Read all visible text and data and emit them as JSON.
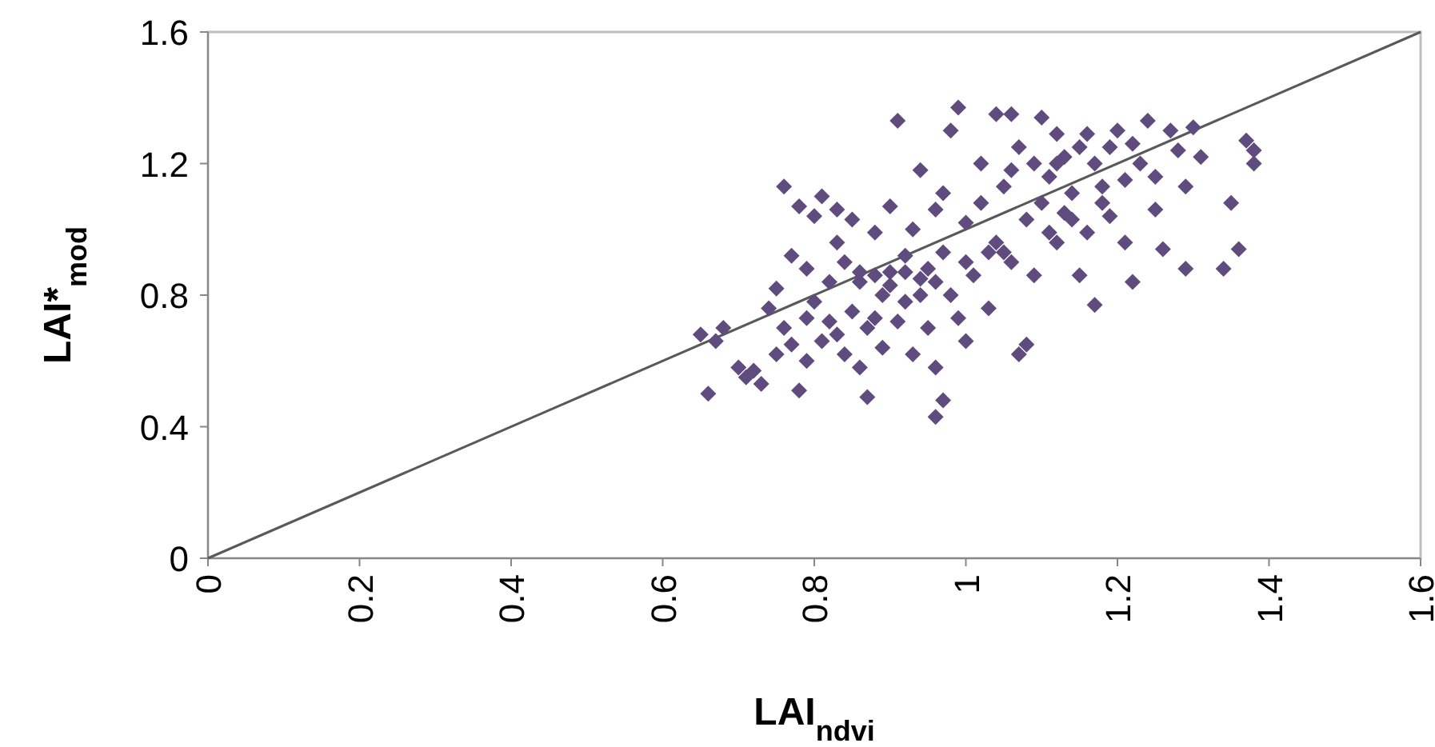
{
  "chart_data": {
    "type": "scatter",
    "xlabel": "LAI$_{ndvi}$",
    "ylabel": "LAI*$_{mod}$",
    "xlim": [
      0,
      1.6
    ],
    "ylim": [
      0,
      1.6
    ],
    "xticks": [
      0,
      0.2,
      0.4,
      0.6,
      0.8,
      1,
      1.2,
      1.4,
      1.6
    ],
    "yticks": [
      0,
      0.4,
      0.8,
      1.2,
      1.6
    ],
    "grid": false,
    "series": [
      {
        "color": "#5f4b7e",
        "marker": "diamond",
        "x": [
          0.65,
          0.67,
          0.66,
          0.68,
          0.7,
          0.71,
          0.72,
          0.73,
          0.74,
          0.75,
          0.75,
          0.76,
          0.76,
          0.77,
          0.77,
          0.78,
          0.78,
          0.79,
          0.79,
          0.8,
          0.8,
          0.81,
          0.81,
          0.82,
          0.82,
          0.83,
          0.83,
          0.84,
          0.84,
          0.85,
          0.85,
          0.86,
          0.86,
          0.87,
          0.87,
          0.88,
          0.88,
          0.89,
          0.89,
          0.9,
          0.9,
          0.91,
          0.91,
          0.92,
          0.92,
          0.93,
          0.93,
          0.94,
          0.94,
          0.95,
          0.95,
          0.96,
          0.96,
          0.96,
          0.97,
          0.97,
          0.97,
          0.98,
          0.98,
          0.99,
          0.99,
          1.0,
          1.0,
          1.01,
          1.02,
          1.02,
          1.03,
          1.04,
          1.04,
          1.05,
          1.05,
          1.06,
          1.06,
          1.07,
          1.07,
          1.08,
          1.08,
          1.09,
          1.09,
          1.1,
          1.1,
          1.11,
          1.11,
          1.12,
          1.12,
          1.13,
          1.13,
          1.14,
          1.15,
          1.15,
          1.16,
          1.16,
          1.17,
          1.17,
          1.18,
          1.19,
          1.19,
          1.2,
          1.21,
          1.21,
          1.22,
          1.22,
          1.23,
          1.24,
          1.25,
          1.25,
          1.26,
          1.27,
          1.28,
          1.29,
          1.29,
          1.3,
          1.31,
          1.34,
          1.35,
          1.36,
          1.37,
          1.38,
          1.38,
          0.9,
          0.92,
          0.94,
          0.96,
          0.86,
          1.0,
          1.03,
          0.79,
          0.83,
          0.88,
          1.12,
          1.14,
          1.06,
          1.18
        ],
        "values": [
          0.68,
          0.66,
          0.5,
          0.7,
          0.58,
          0.55,
          0.57,
          0.53,
          0.76,
          0.82,
          0.62,
          0.7,
          1.13,
          0.65,
          0.92,
          1.07,
          0.51,
          0.88,
          0.6,
          0.78,
          1.04,
          1.1,
          0.66,
          0.84,
          0.72,
          1.06,
          0.96,
          0.62,
          0.9,
          0.75,
          1.03,
          0.58,
          0.84,
          0.49,
          0.7,
          0.86,
          0.99,
          0.64,
          0.8,
          1.07,
          0.87,
          0.72,
          1.33,
          0.92,
          0.78,
          1.0,
          0.62,
          1.18,
          0.85,
          0.88,
          0.7,
          1.06,
          0.58,
          0.43,
          0.48,
          0.93,
          1.11,
          0.8,
          1.3,
          1.37,
          0.73,
          1.02,
          0.66,
          0.86,
          1.2,
          1.08,
          0.76,
          1.35,
          0.96,
          0.93,
          1.13,
          0.9,
          1.35,
          1.25,
          0.62,
          0.65,
          1.03,
          1.2,
          0.86,
          1.08,
          1.34,
          0.99,
          1.16,
          1.29,
          0.96,
          1.05,
          1.22,
          1.11,
          0.86,
          1.25,
          0.99,
          1.29,
          0.77,
          1.2,
          1.08,
          1.25,
          1.04,
          1.3,
          0.96,
          1.15,
          0.84,
          1.26,
          1.2,
          1.33,
          1.16,
          1.06,
          0.94,
          1.3,
          1.24,
          1.13,
          0.88,
          1.31,
          1.22,
          0.88,
          1.08,
          0.94,
          1.27,
          1.24,
          1.2,
          0.83,
          0.87,
          0.8,
          0.84,
          0.87,
          0.9,
          0.93,
          0.73,
          0.68,
          0.73,
          1.2,
          1.03,
          1.18,
          1.13
        ]
      },
      {
        "type": "line",
        "color": "#595959",
        "marker": "none",
        "line_style": "solid",
        "x": [
          0,
          1.6
        ],
        "values": [
          0,
          1.6
        ]
      }
    ]
  }
}
